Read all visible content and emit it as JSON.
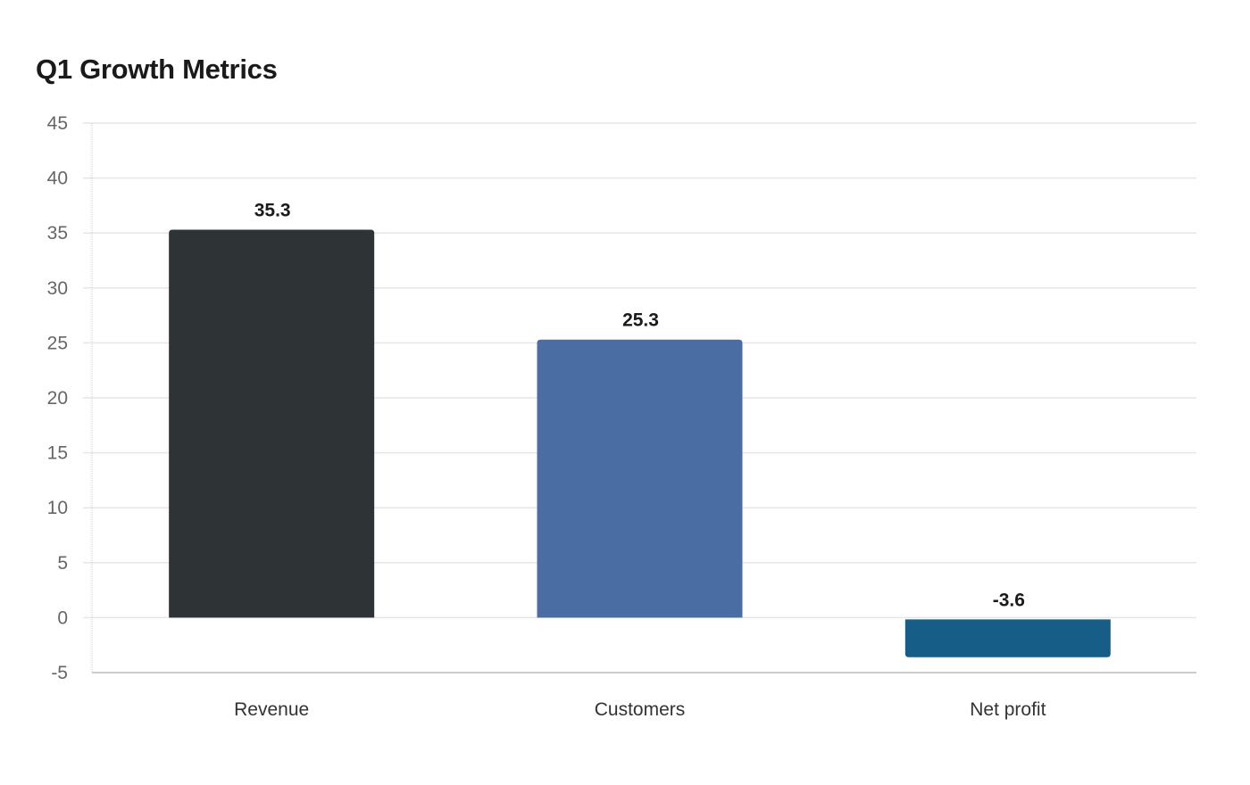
{
  "chart_data": {
    "type": "bar",
    "title": "Q1 Growth Metrics",
    "xlabel": "",
    "ylabel": "",
    "categories": [
      "Revenue",
      "Customers",
      "Net profit"
    ],
    "values": [
      35.3,
      25.3,
      -3.6
    ],
    "data_labels": [
      "35.3",
      "25.3",
      "-3.6"
    ],
    "colors": [
      "#2e3436",
      "#4a6da3",
      "#165e87"
    ],
    "ylim": [
      -5,
      45
    ],
    "yticks": [
      45,
      40,
      35,
      30,
      25,
      20,
      15,
      10,
      5,
      0,
      -5
    ],
    "grid": true,
    "legend": "none"
  }
}
